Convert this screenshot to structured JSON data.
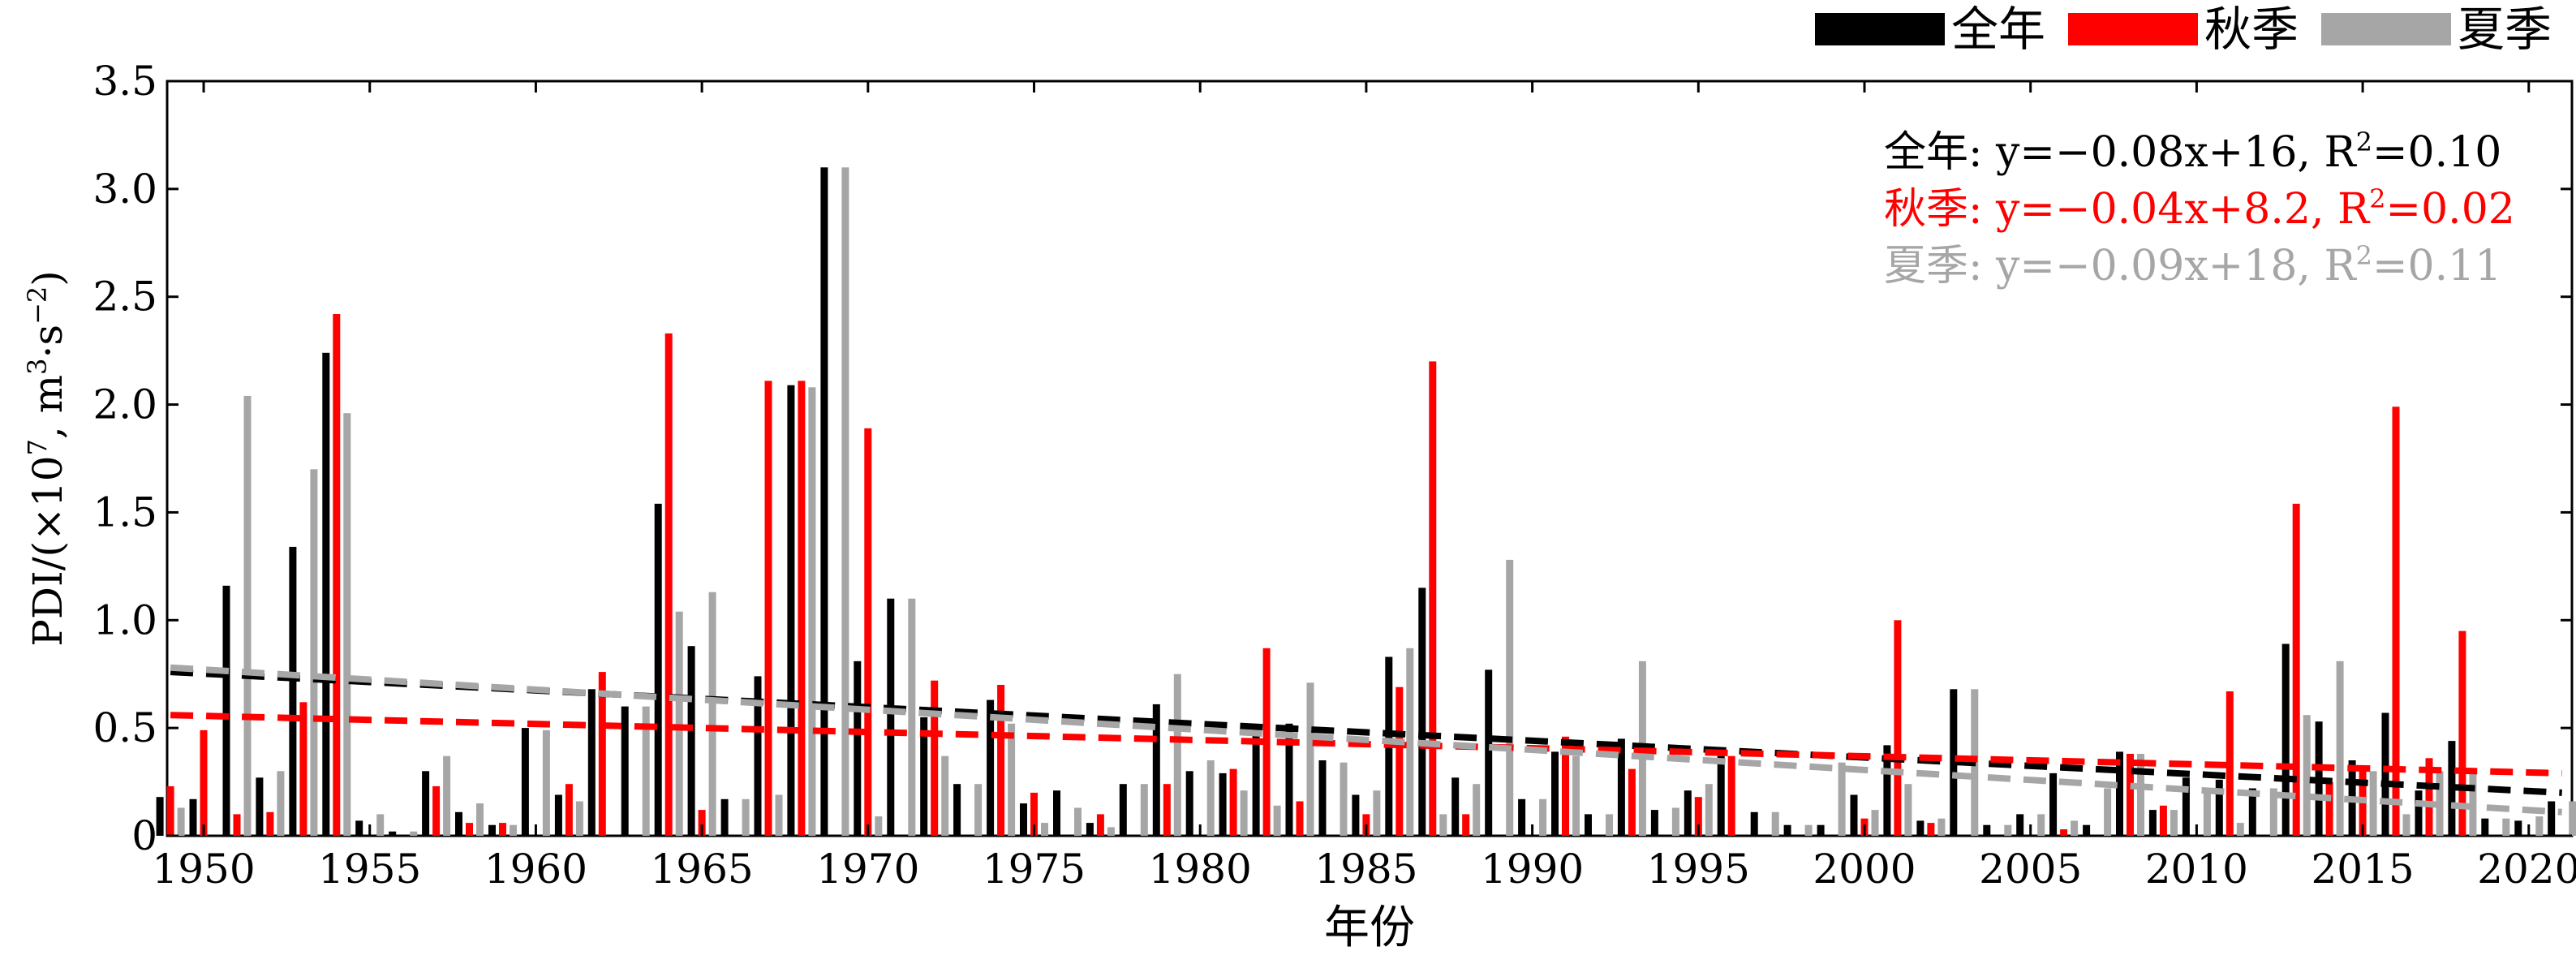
{
  "chart_data": {
    "type": "bar",
    "xlabel": "年份",
    "ylabel_prefix": "PDI/(×10",
    "ylabel_exp1": "7",
    "ylabel_mid": ", m",
    "ylabel_exp2": "3",
    "ylabel_mid2": "·s",
    "ylabel_exp3": "−2",
    "ylabel_suffix": ")",
    "xlim": [
      1948.9,
      2021.3
    ],
    "ylim": [
      0,
      3.5
    ],
    "yticks": [
      0,
      0.5,
      1.0,
      1.5,
      2.0,
      2.5,
      3.0,
      3.5
    ],
    "ytick_labels": [
      "0",
      "0.5",
      "1.0",
      "1.5",
      "2.0",
      "2.5",
      "3.0",
      "3.5"
    ],
    "xticks": [
      1950,
      1955,
      1960,
      1965,
      1970,
      1975,
      1980,
      1985,
      1990,
      1995,
      2000,
      2005,
      2010,
      2015,
      2020
    ],
    "xtick_labels": [
      "1950",
      "1955",
      "1960",
      "1965",
      "1970",
      "1975",
      "1980",
      "1985",
      "1990",
      "1995",
      "2000",
      "2005",
      "2010",
      "2015",
      "2020"
    ],
    "years": [
      1949,
      1950,
      1951,
      1952,
      1953,
      1954,
      1955,
      1956,
      1957,
      1958,
      1959,
      1960,
      1961,
      1962,
      1963,
      1964,
      1965,
      1966,
      1967,
      1968,
      1969,
      1970,
      1971,
      1972,
      1973,
      1974,
      1975,
      1976,
      1977,
      1978,
      1979,
      1980,
      1981,
      1982,
      1983,
      1984,
      1985,
      1986,
      1987,
      1988,
      1989,
      1990,
      1991,
      1992,
      1993,
      1994,
      1995,
      1996,
      1997,
      1998,
      1999,
      2000,
      2001,
      2002,
      2003,
      2004,
      2005,
      2006,
      2007,
      2008,
      2009,
      2010,
      2011,
      2012,
      2013,
      2014,
      2015,
      2016,
      2017,
      2018,
      2019,
      2020,
      2021
    ],
    "series": [
      {
        "name": "全年",
        "color": "#000000",
        "values": [
          0.18,
          0.17,
          1.16,
          0.27,
          1.34,
          2.24,
          0.07,
          0.02,
          0.3,
          0.11,
          0.05,
          0.5,
          0.19,
          0.68,
          0.6,
          1.54,
          0.88,
          0.17,
          0.74,
          2.09,
          3.1,
          0.81,
          1.1,
          0.55,
          0.24,
          0.63,
          0.15,
          0.21,
          0.06,
          0.24,
          0.61,
          0.3,
          0.29,
          0.5,
          0.52,
          0.35,
          0.19,
          0.83,
          1.15,
          0.27,
          0.77,
          0.17,
          0.39,
          0.1,
          0.45,
          0.12,
          0.21,
          0.37,
          0.11,
          0.05,
          0.05,
          0.19,
          0.42,
          0.07,
          0.68,
          0.05,
          0.1,
          0.29,
          0.05,
          0.39,
          0.12,
          0.27,
          0.26,
          0.22,
          0.89,
          0.53,
          0.35,
          0.57,
          0.21,
          0.44,
          0.08,
          0.07,
          0.16
        ]
      },
      {
        "name": "秋季",
        "color": "#ff0000",
        "values": [
          0.23,
          0.49,
          0.1,
          0.11,
          0.62,
          2.42,
          0.0,
          0.0,
          0.23,
          0.06,
          0.06,
          0.0,
          0.24,
          0.76,
          0.0,
          2.33,
          0.12,
          0.0,
          2.11,
          2.11,
          0.0,
          1.89,
          0.0,
          0.72,
          0.0,
          0.7,
          0.2,
          0.0,
          0.1,
          0.0,
          0.24,
          0.0,
          0.31,
          0.87,
          0.16,
          0.0,
          0.1,
          0.69,
          2.2,
          0.1,
          0.0,
          0.0,
          0.46,
          0.0,
          0.31,
          0.0,
          0.18,
          0.37,
          0.0,
          0.0,
          0.0,
          0.08,
          1.0,
          0.06,
          0.0,
          0.0,
          0.0,
          0.03,
          0.0,
          0.38,
          0.14,
          0.0,
          0.67,
          0.0,
          1.54,
          0.25,
          0.3,
          1.99,
          0.36,
          0.95,
          0.0,
          0.0,
          0.0
        ]
      },
      {
        "name": "夏季",
        "color": "#a6a6a6",
        "values": [
          0.13,
          0.0,
          2.04,
          0.3,
          1.7,
          1.96,
          0.1,
          0.02,
          0.37,
          0.15,
          0.05,
          0.49,
          0.16,
          0.0,
          0.6,
          1.04,
          1.13,
          0.17,
          0.19,
          2.08,
          3.1,
          0.09,
          1.1,
          0.37,
          0.24,
          0.52,
          0.06,
          0.13,
          0.04,
          0.24,
          0.75,
          0.35,
          0.21,
          0.14,
          0.71,
          0.34,
          0.21,
          0.87,
          0.1,
          0.24,
          1.28,
          0.17,
          0.37,
          0.1,
          0.81,
          0.13,
          0.24,
          0.0,
          0.11,
          0.05,
          0.34,
          0.12,
          0.24,
          0.08,
          0.68,
          0.05,
          0.1,
          0.07,
          0.22,
          0.38,
          0.12,
          0.21,
          0.06,
          0.22,
          0.56,
          0.81,
          0.3,
          0.1,
          0.3,
          0.3,
          0.08,
          0.09,
          0.16
        ]
      }
    ],
    "trendlines": [
      {
        "name": "全年",
        "color": "#000000",
        "start": [
          1949,
          0.76
        ],
        "end": [
          2021,
          0.2
        ]
      },
      {
        "name": "秋季",
        "color": "#ff0000",
        "start": [
          1949,
          0.56
        ],
        "end": [
          2021,
          0.29
        ]
      },
      {
        "name": "夏季",
        "color": "#a6a6a6",
        "start": [
          1949,
          0.78
        ],
        "end": [
          2021,
          0.11
        ]
      }
    ],
    "annotations": [
      {
        "prefix": "全年: y=−0.08x+16, R",
        "sup": "2",
        "suffix": "=0.10",
        "color": "#000000"
      },
      {
        "prefix": "秋季: y=−0.04x+8.2, R",
        "sup": "2",
        "suffix": "=0.02",
        "color": "#ff0000"
      },
      {
        "prefix": "夏季: y=−0.09x+18, R",
        "sup": "2",
        "suffix": "=0.11",
        "color": "#a6a6a6"
      }
    ],
    "legend": {
      "placement": "top-right",
      "items": [
        {
          "label": "全年",
          "color": "#000000"
        },
        {
          "label": "秋季",
          "color": "#ff0000"
        },
        {
          "label": "夏季",
          "color": "#a6a6a6"
        }
      ]
    }
  }
}
